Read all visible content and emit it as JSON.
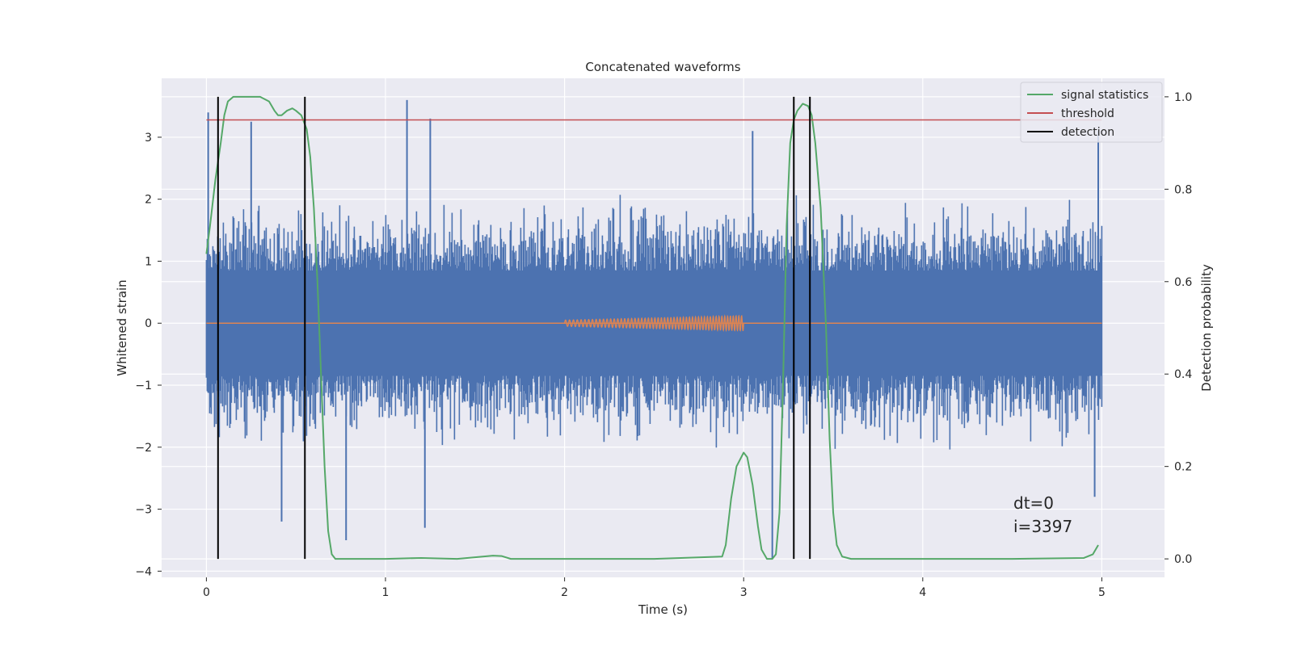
{
  "chart_data": {
    "type": "line",
    "title": "Concatenated waveforms",
    "xlabel": "Time (s)",
    "ylabel": "Whitened strain",
    "y2label": "Detection probability",
    "xlim": [
      -0.25,
      5.35
    ],
    "ylim": [
      -4.1,
      3.95
    ],
    "y2lim": [
      -0.04,
      1.04
    ],
    "xticks": [
      0,
      1,
      2,
      3,
      4,
      5
    ],
    "yticks": [
      -4,
      -3,
      -2,
      -1,
      0,
      1,
      2,
      3
    ],
    "y2ticks": [
      0.0,
      0.2,
      0.4,
      0.6,
      0.8,
      1.0
    ],
    "xtick_labels": [
      "0",
      "1",
      "2",
      "3",
      "4",
      "5"
    ],
    "ytick_labels": [
      "−4",
      "−3",
      "−2",
      "−1",
      "0",
      "1",
      "2",
      "3"
    ],
    "y2tick_labels": [
      "0.0",
      "0.2",
      "0.4",
      "0.6",
      "0.8",
      "1.0"
    ],
    "grid": true,
    "legend_position": "top-right",
    "colors": {
      "background": "#eaeaf2",
      "grid": "#ffffff",
      "noise": "#4c72b0",
      "injection": "#dd8452",
      "signal_statistics": "#55a868",
      "threshold": "#c44e52",
      "detection": "#000000"
    },
    "series": [
      {
        "name": "signal statistics",
        "axis": "right",
        "x": [
          0.0,
          0.02,
          0.05,
          0.08,
          0.1,
          0.12,
          0.15,
          0.2,
          0.3,
          0.35,
          0.38,
          0.4,
          0.42,
          0.45,
          0.48,
          0.5,
          0.53,
          0.56,
          0.58,
          0.6,
          0.62,
          0.64,
          0.66,
          0.68,
          0.7,
          0.72,
          0.75,
          0.8,
          1.0,
          1.2,
          1.4,
          1.6,
          1.65,
          1.7,
          2.0,
          2.5,
          2.88,
          2.9,
          2.93,
          2.96,
          3.0,
          3.02,
          3.05,
          3.08,
          3.1,
          3.13,
          3.16,
          3.18,
          3.2,
          3.22,
          3.24,
          3.26,
          3.28,
          3.3,
          3.33,
          3.36,
          3.38,
          3.4,
          3.43,
          3.46,
          3.48,
          3.5,
          3.52,
          3.55,
          3.6,
          4.0,
          4.5,
          4.9,
          4.95,
          4.98
        ],
        "y": [
          0.66,
          0.72,
          0.82,
          0.9,
          0.96,
          0.99,
          1.0,
          1.0,
          1.0,
          0.99,
          0.97,
          0.96,
          0.96,
          0.97,
          0.975,
          0.97,
          0.96,
          0.93,
          0.87,
          0.76,
          0.6,
          0.4,
          0.2,
          0.06,
          0.01,
          0.0,
          0.0,
          0.0,
          0.0,
          0.002,
          0.0,
          0.007,
          0.006,
          0.0,
          0.0,
          0.0,
          0.005,
          0.03,
          0.13,
          0.2,
          0.23,
          0.22,
          0.16,
          0.07,
          0.02,
          0.0,
          0.0,
          0.01,
          0.1,
          0.38,
          0.72,
          0.9,
          0.95,
          0.97,
          0.985,
          0.98,
          0.96,
          0.9,
          0.76,
          0.5,
          0.26,
          0.1,
          0.03,
          0.005,
          0.0,
          0.0,
          0.0,
          0.002,
          0.01,
          0.03
        ]
      },
      {
        "name": "threshold",
        "axis": "right",
        "x": [
          0.0,
          5.0
        ],
        "y": [
          0.95,
          0.95
        ]
      },
      {
        "name": "detection",
        "axis": "right",
        "x": [
          0.065,
          0.55,
          3.28,
          3.37
        ],
        "y_range": [
          0.0,
          1.0
        ]
      }
    ],
    "noise_trace": {
      "axis": "left",
      "x_range": [
        0.0,
        5.0
      ],
      "core_range": [
        -0.85,
        0.85
      ],
      "typical_range": [
        -2.0,
        2.0
      ],
      "spikes": [
        {
          "x": 0.01,
          "y": 3.4
        },
        {
          "x": 0.25,
          "y": 3.25
        },
        {
          "x": 0.42,
          "y": -3.2
        },
        {
          "x": 0.78,
          "y": -3.5
        },
        {
          "x": 1.12,
          "y": 3.6
        },
        {
          "x": 1.22,
          "y": -3.3
        },
        {
          "x": 1.25,
          "y": 3.3
        },
        {
          "x": 3.05,
          "y": 3.1
        },
        {
          "x": 3.16,
          "y": -3.8
        },
        {
          "x": 4.96,
          "y": -2.8
        },
        {
          "x": 4.98,
          "y": 3.1
        }
      ]
    },
    "injection": {
      "axis": "left",
      "x_range": [
        2.0,
        3.0
      ],
      "amplitude": [
        0.05,
        0.12
      ],
      "cycles": 50
    },
    "annotations": [
      "dt=0",
      "i=3397"
    ]
  }
}
